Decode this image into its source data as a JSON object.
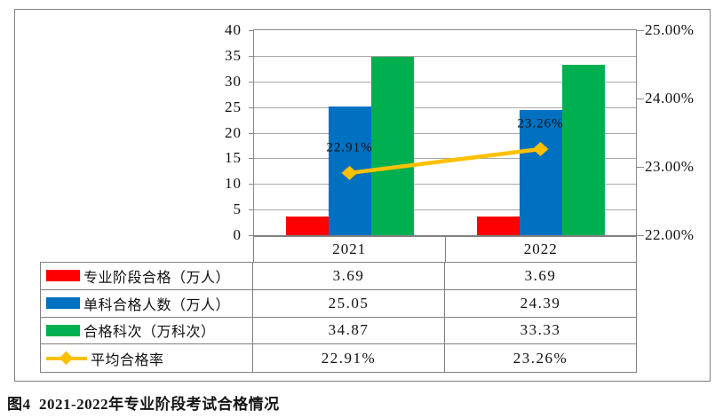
{
  "figure": {
    "caption": "图4  2021-2022年专业阶段考试合格情况"
  },
  "chart_data": {
    "type": "bar",
    "subtype": "grouped-bars-with-line-overlay",
    "categories": [
      "2021",
      "2022"
    ],
    "series": [
      {
        "key": "professional-stage-pass",
        "name": "专业阶段合格（万人）",
        "type": "bar",
        "axis": "left",
        "color": "#fe0000",
        "values": [
          3.69,
          3.69
        ]
      },
      {
        "key": "single-subject-pass",
        "name": "单科合格人数（万人）",
        "type": "bar",
        "axis": "left",
        "color": "#0070c0",
        "values": [
          25.05,
          24.39
        ]
      },
      {
        "key": "pass-subject-counts",
        "name": "合格科次（万科次）",
        "type": "bar",
        "axis": "left",
        "color": "#00b050",
        "values": [
          34.87,
          33.33
        ]
      },
      {
        "key": "average-pass-rate",
        "name": "平均合格率",
        "type": "line",
        "axis": "right",
        "color": "#ffc000",
        "values": [
          22.91,
          23.26
        ],
        "point_labels": [
          "22.91%",
          "23.26%"
        ]
      }
    ],
    "left_axis": {
      "min": 0,
      "max": 40,
      "step": 5,
      "tick_labels": [
        "0",
        "5",
        "10",
        "15",
        "20",
        "25",
        "30",
        "35",
        "40"
      ]
    },
    "right_axis": {
      "min": 22,
      "max": 25,
      "step": 1,
      "tick_labels": [
        "22.00%",
        "23.00%",
        "24.00%",
        "25.00%"
      ]
    },
    "grid": "horizontal gridlines every 5 units of left axis",
    "legend_position": "bottom-table",
    "title": ""
  },
  "table": {
    "header": [
      "2021",
      "2022"
    ],
    "rows": [
      {
        "label": "专业阶段合格（万人）",
        "values": [
          "3.69",
          "3.69"
        ]
      },
      {
        "label": "单科合格人数（万人）",
        "values": [
          "25.05",
          "24.39"
        ]
      },
      {
        "label": "合格科次（万科次）",
        "values": [
          "34.87",
          "33.33"
        ]
      },
      {
        "label": "平均合格率",
        "values": [
          "22.91%",
          "23.26%"
        ]
      }
    ]
  }
}
